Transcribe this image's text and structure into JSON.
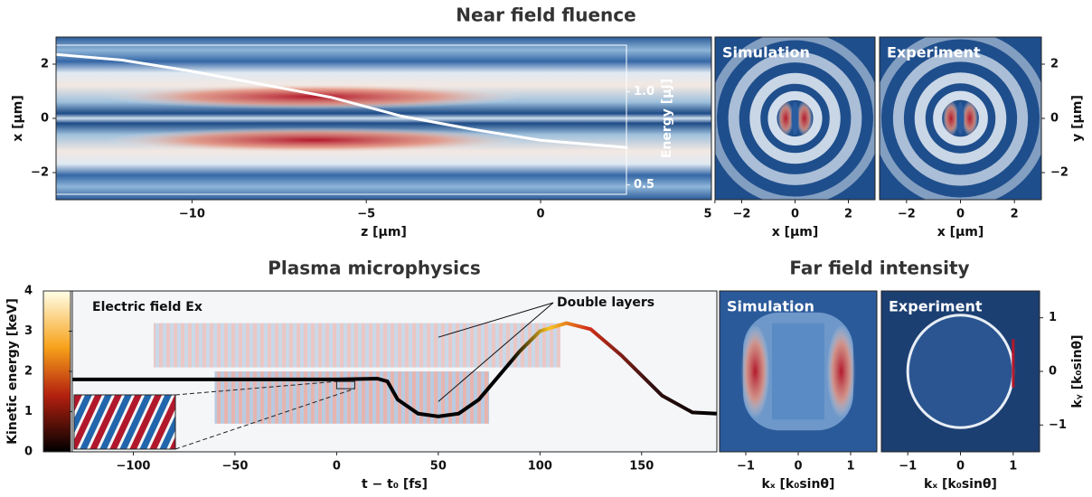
{
  "chart_data": [
    {
      "type": "heatmap",
      "title": "Near field fluence",
      "xlabel": "z [µm]",
      "ylabel": "x [µm]",
      "y2label": "Energy [µJ]",
      "xlim": [
        -13.9,
        4.9
      ],
      "ylim": [
        -3,
        3
      ],
      "y2lim": [
        0.45,
        1.25
      ],
      "xticks": [
        {
          "value": -10,
          "label": "−10"
        },
        {
          "value": -5,
          "label": "−5"
        },
        0,
        5
      ],
      "yticks": [
        {
          "value": -2,
          "label": "−2"
        },
        0,
        2
      ],
      "y2ticks": [
        0.5,
        {
          "value": 1,
          "label": "1.0"
        }
      ],
      "series": [
        {
          "color": "#ffffff",
          "axis": "y2",
          "x": [
            -13.9,
            -12,
            -10,
            -8,
            -6,
            -4,
            -2,
            0,
            2.5
          ],
          "values": [
            1.2,
            1.17,
            1.11,
            1.04,
            0.97,
            0.87,
            0.8,
            0.74,
            0.7
          ]
        }
      ]
    },
    {
      "type": "heatmap",
      "label": "Simulation",
      "xlabel": "x [µm]",
      "xlim": [
        -3,
        3
      ],
      "ylim": [
        -3,
        3
      ],
      "xticks": [
        {
          "value": -2,
          "label": "−2"
        },
        0,
        2
      ]
    },
    {
      "type": "heatmap",
      "label": "Experiment",
      "xlabel": "x [µm]",
      "ylabel": "y [µm]",
      "xlim": [
        -3,
        3
      ],
      "ylim": [
        -3,
        3
      ],
      "xticks": [
        {
          "value": -2,
          "label": "−2"
        },
        0,
        2
      ],
      "yticks": [
        {
          "value": -2,
          "label": "−2"
        },
        0,
        2
      ]
    },
    {
      "type": "heatmap",
      "title": "Plasma microphysics",
      "xlabel": "t − t₀ [fs]",
      "ylabel": "Kinetic energy [keV]",
      "annotations": [
        "Electric field Ex",
        "Double layers"
      ],
      "xlim": [
        -130,
        187
      ],
      "ylim": [
        0,
        4
      ],
      "xticks": [
        {
          "value": -100,
          "label": "−100"
        },
        {
          "value": -50,
          "label": "−50"
        },
        0,
        50,
        100,
        150
      ],
      "yticks": [
        0,
        1,
        2,
        3,
        4
      ],
      "series": [
        {
          "color": "#000000",
          "x": [
            -130,
            -100,
            -50,
            0,
            20,
            25,
            30,
            40,
            50,
            60,
            70,
            80,
            90,
            100,
            113,
            125,
            140,
            160,
            175,
            187
          ],
          "values": [
            1.8,
            1.8,
            1.8,
            1.8,
            1.82,
            1.75,
            1.3,
            0.95,
            0.88,
            0.95,
            1.3,
            1.9,
            2.5,
            3.0,
            3.2,
            3.05,
            2.4,
            1.4,
            0.98,
            0.95
          ]
        }
      ]
    },
    {
      "type": "heatmap",
      "title": "Far field intensity",
      "label": "Simulation",
      "xlabel": "kₓ [k₀sinθ]",
      "xlim": [
        -1.5,
        1.5
      ],
      "ylim": [
        -1.5,
        1.5
      ],
      "xticks": [
        {
          "value": -1,
          "label": "−1"
        },
        0,
        1
      ]
    },
    {
      "type": "heatmap",
      "label": "Experiment",
      "xlabel": "kₓ [k₀sinθ]",
      "ylabel": "kᵧ [k₀sinθ]",
      "xlim": [
        -1.5,
        1.5
      ],
      "ylim": [
        -1.5,
        1.5
      ],
      "xticks": [
        {
          "value": -1,
          "label": "−1"
        },
        0,
        1
      ],
      "yticks": [
        {
          "value": -1,
          "label": "−1"
        },
        0,
        1
      ]
    }
  ]
}
